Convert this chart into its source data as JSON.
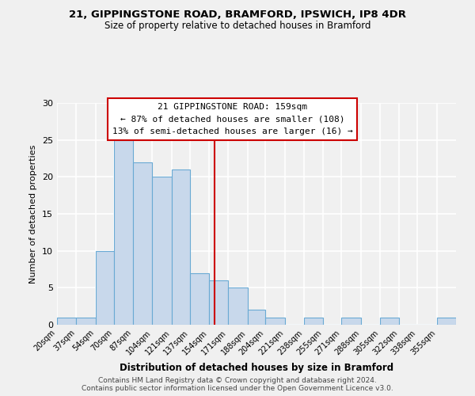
{
  "title1": "21, GIPPINGSTONE ROAD, BRAMFORD, IPSWICH, IP8 4DR",
  "title2": "Size of property relative to detached houses in Bramford",
  "xlabel": "Distribution of detached houses by size in Bramford",
  "ylabel": "Number of detached properties",
  "bin_edges": [
    20,
    37,
    54,
    70,
    87,
    104,
    121,
    137,
    154,
    171,
    188,
    204,
    221,
    238,
    255,
    271,
    288,
    305,
    322,
    338,
    355,
    372
  ],
  "bar_heights": [
    1,
    1,
    10,
    25,
    22,
    20,
    21,
    7,
    6,
    5,
    2,
    1,
    0,
    1,
    0,
    1,
    0,
    1,
    0,
    0,
    1
  ],
  "bar_color": "#c8d8eb",
  "bar_edgecolor": "#6aaad4",
  "vline_x": 159,
  "vline_color": "#cc0000",
  "ylim": [
    0,
    30
  ],
  "yticks": [
    0,
    5,
    10,
    15,
    20,
    25,
    30
  ],
  "annotation_line1": "21 GIPPINGSTONE ROAD: 159sqm",
  "annotation_line2": "← 87% of detached houses are smaller (108)",
  "annotation_line3": "13% of semi-detached houses are larger (16) →",
  "annotation_box_edgecolor": "#cc0000",
  "footer1": "Contains HM Land Registry data © Crown copyright and database right 2024.",
  "footer2": "Contains public sector information licensed under the Open Government Licence v3.0.",
  "background_color": "#f0f0f0"
}
